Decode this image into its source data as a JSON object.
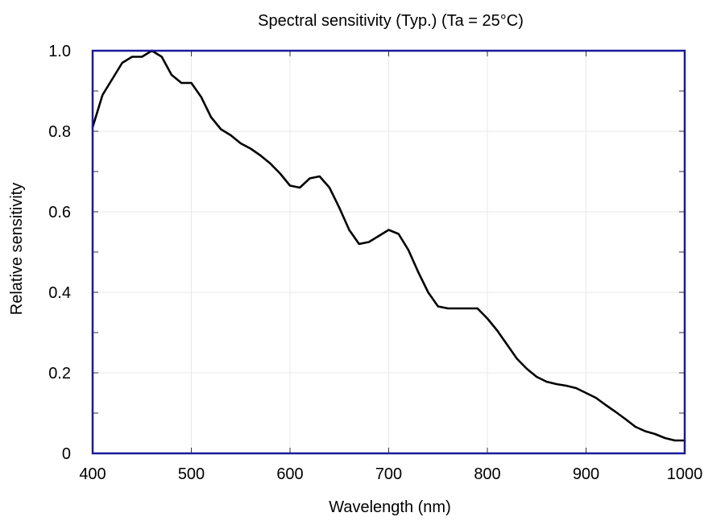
{
  "chart_data": {
    "type": "line",
    "title": "Spectral sensitivity (Typ.) (Ta = 25°C)",
    "xlabel": "Wavelength (nm)",
    "ylabel": "Relative sensitivity",
    "xlim": [
      400,
      1000
    ],
    "ylim": [
      0,
      1.0
    ],
    "x_ticks": [
      400,
      500,
      600,
      700,
      800,
      900,
      1000
    ],
    "x_tick_labels": [
      "400",
      "500",
      "600",
      "700",
      "800",
      "900",
      "1000"
    ],
    "y_ticks": [
      0,
      0.2,
      0.4,
      0.6,
      0.8,
      1.0
    ],
    "y_tick_labels": [
      "0",
      "0.2",
      "0.4",
      "0.6",
      "0.8",
      "1.0"
    ],
    "grid": true,
    "legend": "none",
    "colors": {
      "line": "#000000",
      "frame": "#1a1a99",
      "grid": "#e8e8e8"
    },
    "series": [
      {
        "x": [
          400,
          410,
          420,
          430,
          440,
          450,
          460,
          470,
          480,
          490,
          500,
          510,
          520,
          530,
          540,
          550,
          560,
          570,
          580,
          590,
          600,
          610,
          620,
          630,
          640,
          650,
          660,
          670,
          680,
          690,
          700,
          710,
          720,
          730,
          740,
          750,
          760,
          770,
          780,
          790,
          800,
          810,
          820,
          830,
          840,
          850,
          860,
          870,
          880,
          890,
          900,
          910,
          920,
          930,
          940,
          950,
          960,
          970,
          980,
          990,
          1000
        ],
        "values": [
          0.81,
          0.89,
          0.93,
          0.97,
          0.985,
          0.985,
          1.0,
          0.985,
          0.94,
          0.92,
          0.92,
          0.885,
          0.835,
          0.805,
          0.79,
          0.77,
          0.757,
          0.74,
          0.72,
          0.695,
          0.665,
          0.66,
          0.683,
          0.688,
          0.66,
          0.61,
          0.555,
          0.52,
          0.525,
          0.54,
          0.555,
          0.545,
          0.505,
          0.45,
          0.4,
          0.365,
          0.36,
          0.36,
          0.36,
          0.36,
          0.335,
          0.305,
          0.27,
          0.235,
          0.21,
          0.19,
          0.178,
          0.172,
          0.168,
          0.162,
          0.15,
          0.138,
          0.12,
          0.103,
          0.085,
          0.066,
          0.055,
          0.048,
          0.038,
          0.032,
          0.032
        ]
      }
    ]
  }
}
